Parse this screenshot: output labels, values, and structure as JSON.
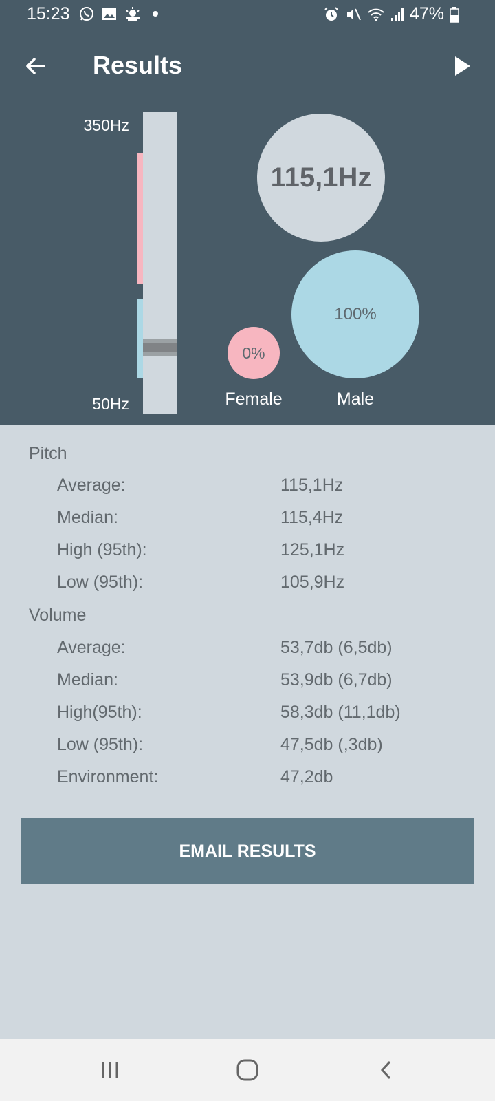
{
  "status_bar": {
    "time": "15:23",
    "battery": "47%",
    "notification_icons": [
      "whatsapp-icon",
      "gallery-icon",
      "weather-icon",
      "dot-icon"
    ],
    "system_icons": [
      "alarm-icon",
      "mute-icon",
      "wifi-icon",
      "signal-icon",
      "battery-icon"
    ]
  },
  "app_bar": {
    "title": "Results",
    "back_icon": "arrow-left-icon",
    "play_icon": "play-icon"
  },
  "pitch_scale": {
    "max_label": "350Hz",
    "min_label": "50Hz",
    "female_range_color": "#f7b6c0",
    "male_range_color": "#acd8e5"
  },
  "result": {
    "pitch_value": "115,1Hz",
    "female_percent": "0%",
    "male_percent": "100%",
    "female_label": "Female",
    "male_label": "Male"
  },
  "pitch": {
    "title": "Pitch",
    "rows": [
      {
        "label": "Average:",
        "value": "115,1Hz"
      },
      {
        "label": "Median:",
        "value": "115,4Hz"
      },
      {
        "label": "High (95th):",
        "value": "125,1Hz"
      },
      {
        "label": "Low (95th):",
        "value": "105,9Hz"
      }
    ]
  },
  "volume": {
    "title": "Volume",
    "rows": [
      {
        "label": "Average:",
        "value": "53,7db (6,5db)"
      },
      {
        "label": "Median:",
        "value": "53,9db (6,7db)"
      },
      {
        "label": "High(95th):",
        "value": "58,3db (11,1db)"
      },
      {
        "label": "Low (95th):",
        "value": "47,5db (,3db)"
      },
      {
        "label": "Environment:",
        "value": "47,2db"
      }
    ]
  },
  "actions": {
    "email_label": "EMAIL RESULTS"
  },
  "colors": {
    "header_bg": "#485b67",
    "content_bg": "#d0d8de",
    "button_bg": "#607b88"
  }
}
